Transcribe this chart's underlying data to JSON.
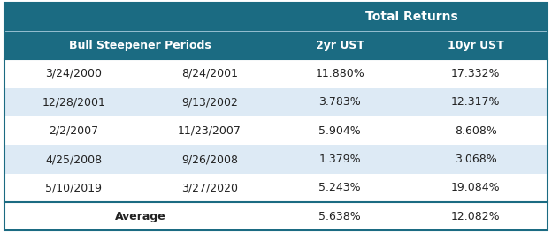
{
  "title_row": "Total Returns",
  "header_col1": "Bull Steepener Periods",
  "header_col2": "2yr UST",
  "header_col3": "10yr UST",
  "rows": [
    [
      "3/24/2000",
      "8/24/2001",
      "11.880%",
      "17.332%"
    ],
    [
      "12/28/2001",
      "9/13/2002",
      "3.783%",
      "12.317%"
    ],
    [
      "2/2/2007",
      "11/23/2007",
      "5.904%",
      "8.608%"
    ],
    [
      "4/25/2008",
      "9/26/2008",
      "1.379%",
      "3.068%"
    ],
    [
      "5/10/2019",
      "3/27/2020",
      "5.243%",
      "19.084%"
    ]
  ],
  "avg_row": [
    "Average",
    "5.638%",
    "12.082%"
  ],
  "header_bg": "#1b6b82",
  "header_text": "#ffffff",
  "row_bg_white": "#ffffff",
  "row_bg_blue": "#ddeaf5",
  "text_color": "#222222",
  "border_color": "#1b6b82",
  "title_fontsize": 10,
  "header_fontsize": 9,
  "data_fontsize": 9,
  "col_splits": [
    0.0,
    0.255,
    0.5,
    0.735,
    1.0
  ]
}
